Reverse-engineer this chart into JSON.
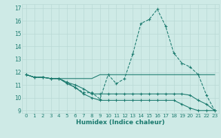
{
  "xlabel": "Humidex (Indice chaleur)",
  "background_color": "#ceeae6",
  "grid_color": "#b8d8d4",
  "line_color": "#1a7a6e",
  "xlim": [
    -0.5,
    23.5
  ],
  "ylim": [
    8.8,
    17.3
  ],
  "xticks": [
    0,
    1,
    2,
    3,
    4,
    5,
    6,
    7,
    8,
    9,
    10,
    11,
    12,
    13,
    14,
    15,
    16,
    17,
    18,
    19,
    20,
    21,
    22,
    23
  ],
  "yticks": [
    9,
    10,
    11,
    12,
    13,
    14,
    15,
    16,
    17
  ],
  "series": [
    {
      "y": [
        11.8,
        11.6,
        11.6,
        11.5,
        11.5,
        11.2,
        10.8,
        10.4,
        10.4,
        9.9,
        11.8,
        11.1,
        11.5,
        13.4,
        15.8,
        16.1,
        16.9,
        15.6,
        13.5,
        12.7,
        12.4,
        11.8,
        10.2,
        9.0
      ],
      "linestyle": "--",
      "marker": true
    },
    {
      "y": [
        11.8,
        11.6,
        11.6,
        11.5,
        11.5,
        11.5,
        11.5,
        11.5,
        11.5,
        11.8,
        11.8,
        11.8,
        11.8,
        11.8,
        11.8,
        11.8,
        11.8,
        11.8,
        11.8,
        11.8,
        11.8,
        11.8,
        11.8,
        11.8
      ],
      "linestyle": "-",
      "marker": false
    },
    {
      "y": [
        11.8,
        11.6,
        11.6,
        11.5,
        11.5,
        11.2,
        11.0,
        10.7,
        10.3,
        10.3,
        10.3,
        10.3,
        10.3,
        10.3,
        10.3,
        10.3,
        10.3,
        10.3,
        10.3,
        10.3,
        10.2,
        9.8,
        9.5,
        9.0
      ],
      "linestyle": "-",
      "marker": true
    },
    {
      "y": [
        11.8,
        11.6,
        11.6,
        11.5,
        11.5,
        11.1,
        10.8,
        10.3,
        10.0,
        9.8,
        9.8,
        9.8,
        9.8,
        9.8,
        9.8,
        9.8,
        9.8,
        9.8,
        9.8,
        9.5,
        9.2,
        9.0,
        9.0,
        9.0
      ],
      "linestyle": "-",
      "marker": true
    }
  ]
}
